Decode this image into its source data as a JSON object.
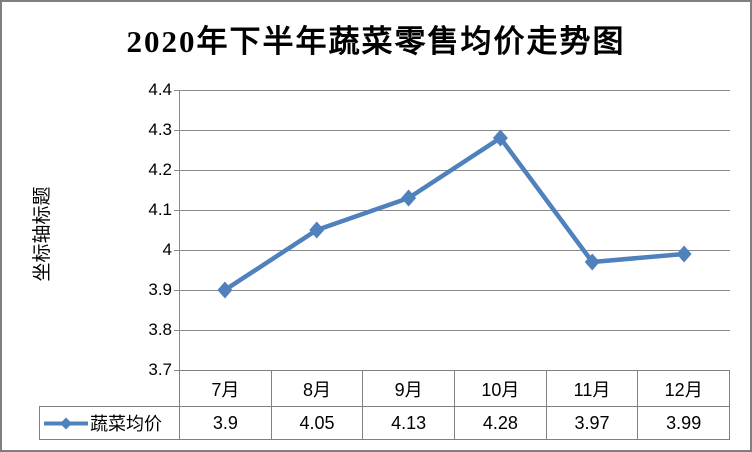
{
  "chart_data": {
    "type": "line",
    "title": "2020年下半年蔬菜零售均价走势图",
    "ylabel": "坐标轴标题",
    "xlabel": "",
    "categories": [
      "7月",
      "8月",
      "9月",
      "10月",
      "11月",
      "12月"
    ],
    "series": [
      {
        "name": "蔬菜均价",
        "values": [
          3.9,
          4.05,
          4.13,
          4.28,
          3.97,
          3.99
        ]
      }
    ],
    "ylim": [
      3.7,
      4.4
    ],
    "yticks": [
      "4.4",
      "4.3",
      "4.2",
      "4.1",
      "4",
      "3.9",
      "3.8",
      "3.7"
    ],
    "grid": true,
    "marker": "diamond",
    "legend_position": "table-row-left",
    "colors": {
      "series_line": "#4F81BD",
      "gridline": "#898989",
      "axis_line": "#898989",
      "table_border": "#808080",
      "outer_border": "#7F7F7F",
      "text": "#000000",
      "background": "#FFFFFF"
    }
  }
}
